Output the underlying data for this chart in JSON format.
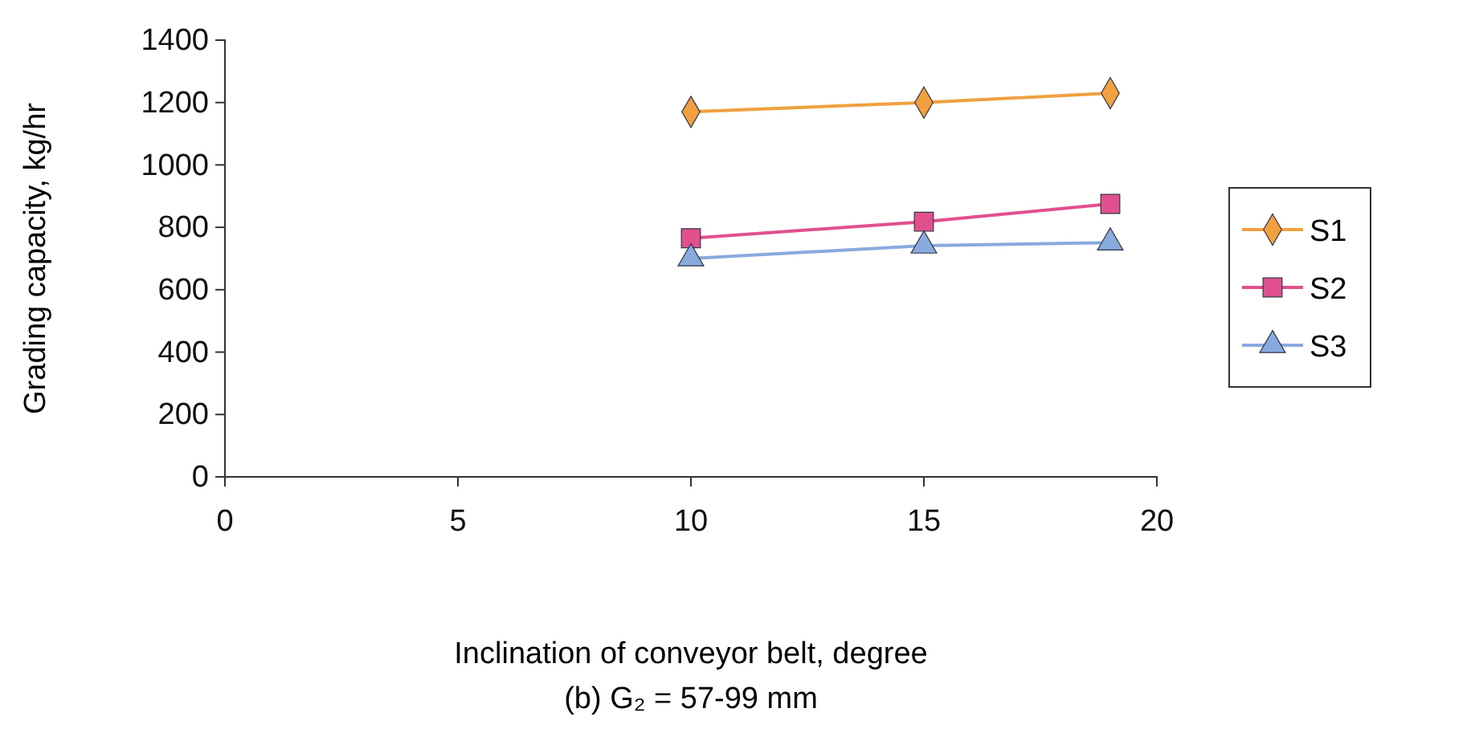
{
  "chart_data": {
    "type": "line",
    "xlabel": "Inclination of conveyor belt, degree",
    "ylabel": "Grading capacity, kg/hr",
    "annotations": [
      "(b) G₂ = 57-99 mm"
    ],
    "xlim": [
      0,
      20
    ],
    "xticks": [
      0,
      5,
      10,
      15,
      20
    ],
    "ylim": [
      0,
      1400
    ],
    "yticks": [
      0,
      200,
      400,
      600,
      800,
      1000,
      1200,
      1400
    ],
    "grid": false,
    "legend": "right",
    "series": [
      {
        "name": "S1",
        "color": "#f0a040",
        "marker": "diamond",
        "x": [
          10,
          15,
          19
        ],
        "values": [
          1170,
          1200,
          1230
        ]
      },
      {
        "name": "S2",
        "color": "#e0508f",
        "marker": "square",
        "x": [
          10,
          15,
          19
        ],
        "values": [
          765,
          818,
          875
        ]
      },
      {
        "name": "S3",
        "color": "#88aadd",
        "marker": "triangle",
        "x": [
          10,
          15,
          19
        ],
        "values": [
          700,
          741,
          751
        ]
      }
    ]
  }
}
